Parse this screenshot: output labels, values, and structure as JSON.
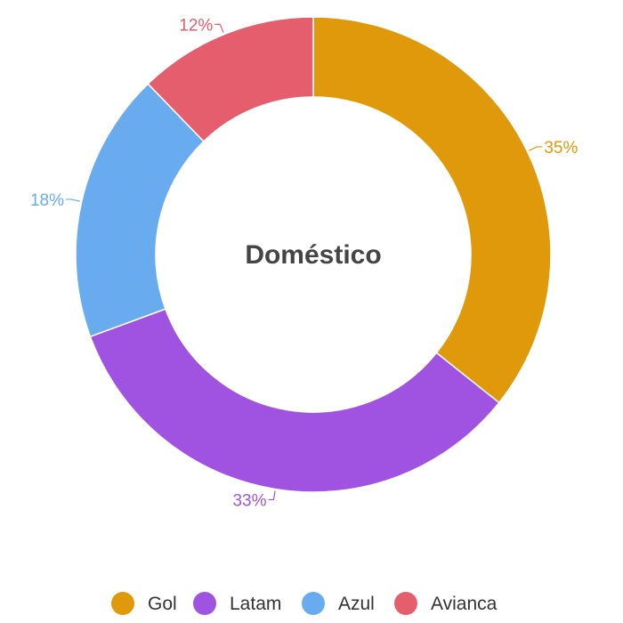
{
  "chart_data": {
    "type": "pie",
    "title": "Doméstico",
    "categories": [
      "Gol",
      "Latam",
      "Azul",
      "Avianca"
    ],
    "values": [
      35,
      33,
      18,
      12
    ],
    "labels": [
      "35%",
      "33%",
      "18%",
      "12%"
    ],
    "colors": [
      "#E0990A",
      "#A052E0",
      "#68ACEF",
      "#E55E6E"
    ],
    "donut": true,
    "legend": "bottom-center"
  }
}
